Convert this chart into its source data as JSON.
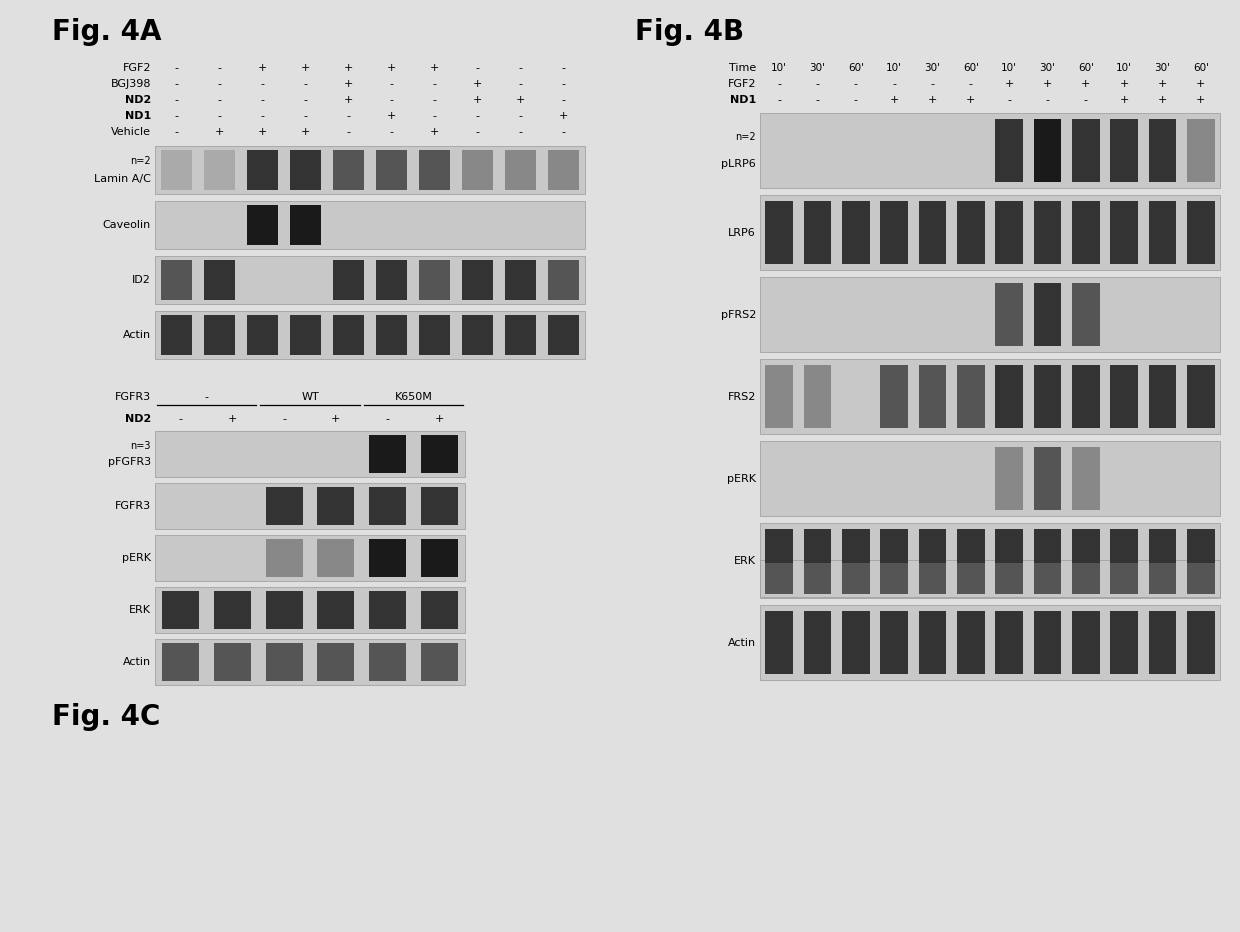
{
  "fig_title_4A": "Fig. 4A",
  "fig_title_4B": "Fig. 4B",
  "fig_title_4C": "Fig. 4C",
  "bg_color": "#e0e0e0",
  "4A_label_names": [
    "FGF2",
    "BGJ398",
    "ND2",
    "ND1",
    "Vehicle"
  ],
  "4A_label_bold": [
    false,
    false,
    true,
    true,
    false
  ],
  "4A_signs_row0": [
    "-",
    "-",
    "+",
    "+",
    "+",
    "+",
    "+",
    "-",
    "-",
    "-"
  ],
  "4A_signs_row1": [
    "-",
    "-",
    "-",
    "-",
    "+",
    "-",
    "-",
    "+",
    "-",
    "-"
  ],
  "4A_signs_row2": [
    "-",
    "-",
    "-",
    "-",
    "+",
    "-",
    "-",
    "+",
    "+",
    "-"
  ],
  "4A_signs_row3": [
    "-",
    "-",
    "-",
    "-",
    "-",
    "+",
    "-",
    "-",
    "-",
    "+"
  ],
  "4A_signs_row4": [
    "-",
    "+",
    "+",
    "+",
    "-",
    "-",
    "+",
    "-",
    "-",
    "-"
  ],
  "4B_time_labels": [
    "10'",
    "30'",
    "60'",
    "10'",
    "30'",
    "60'",
    "10'",
    "30'",
    "60'",
    "10'",
    "30'",
    "60'"
  ],
  "4B_fgf2_signs": [
    "-",
    "-",
    "-",
    "-",
    "-",
    "-",
    "+",
    "+",
    "+",
    "+",
    "+",
    "+"
  ],
  "4B_nd1_signs": [
    "-",
    "-",
    "-",
    "+",
    "+",
    "+",
    "-",
    "-",
    "-",
    "+",
    "+",
    "+"
  ],
  "4C_group_labels": [
    "-",
    "WT",
    "K650M"
  ],
  "4C_nd2_signs": [
    "-",
    "+",
    "-",
    "+",
    "-",
    "+"
  ]
}
